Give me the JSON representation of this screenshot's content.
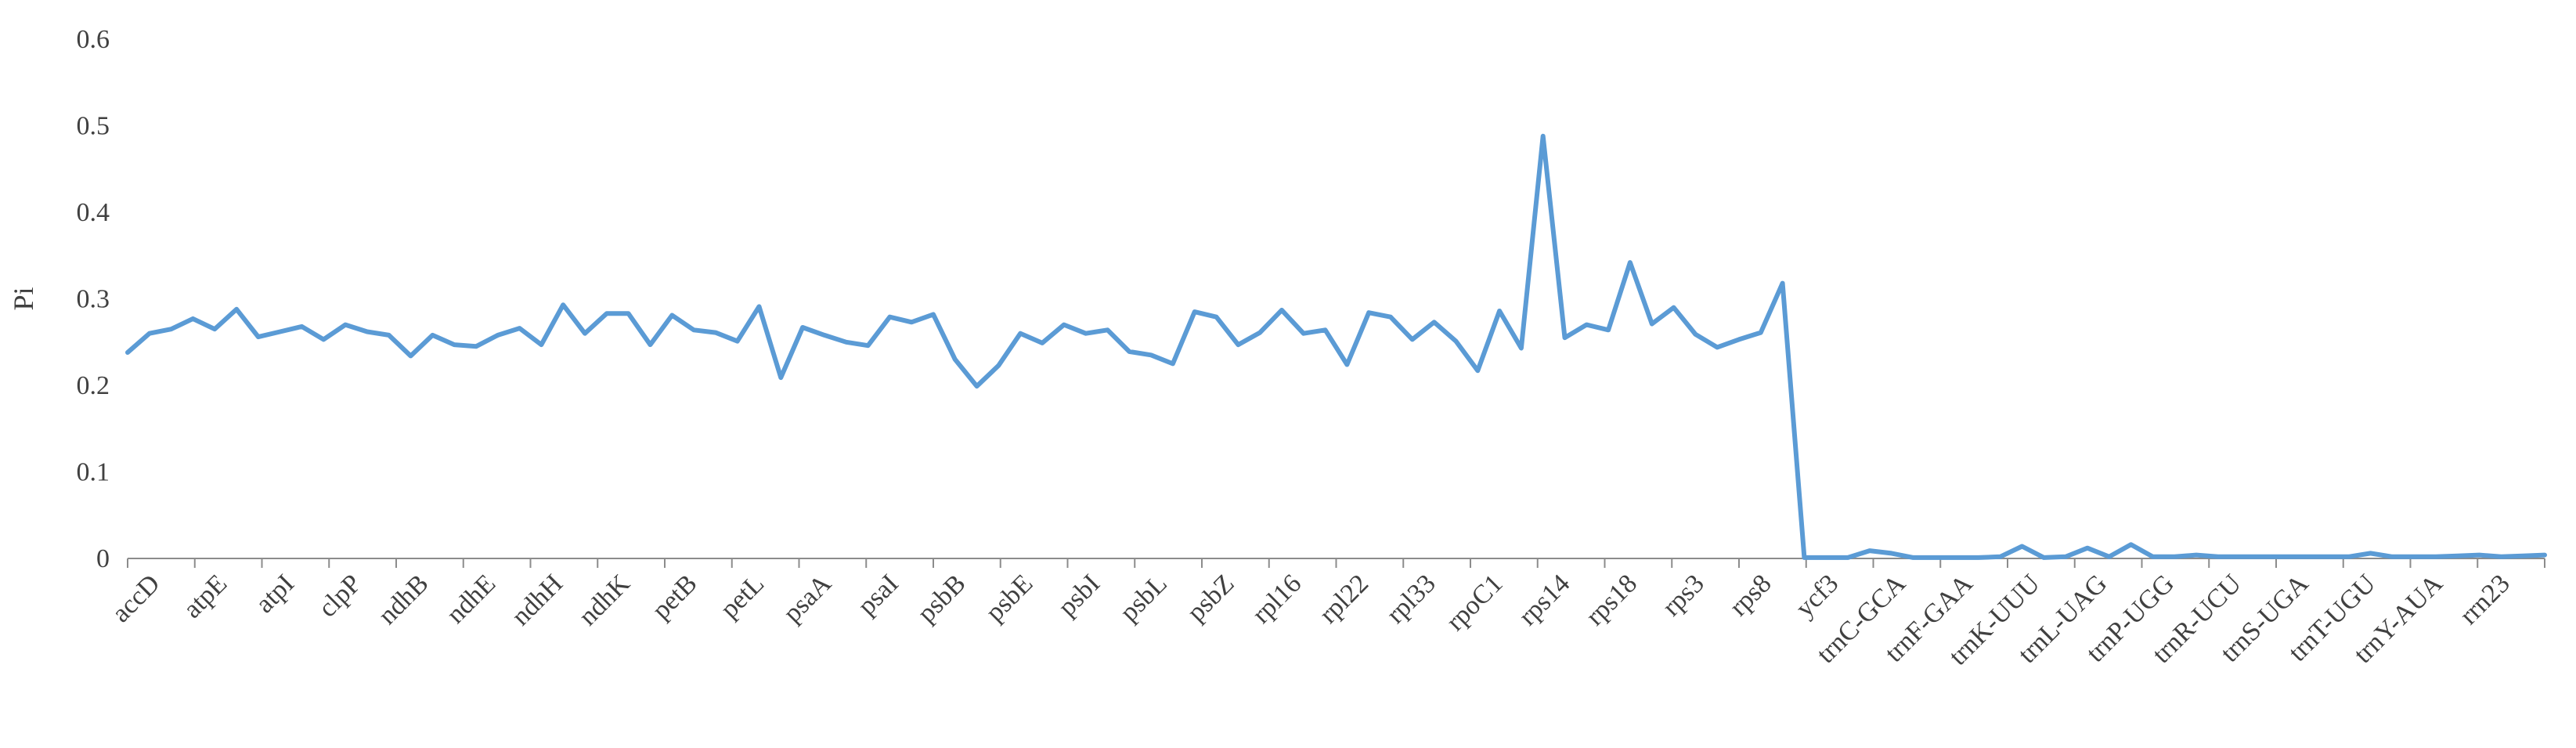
{
  "chart_data": {
    "type": "line",
    "title": "",
    "xlabel": "",
    "ylabel": "Pi",
    "ylim": [
      0,
      0.6
    ],
    "yticks": [
      "0",
      "0.1",
      "0.2",
      "0.3",
      "0.4",
      "0.5",
      "0.6"
    ],
    "grid": false,
    "line_color": "#5b9bd5",
    "x_labels": [
      "accD",
      "atpE",
      "atpI",
      "clpP",
      "ndhB",
      "ndhE",
      "ndhH",
      "ndhK",
      "petB",
      "petL",
      "psaA",
      "psaI",
      "psbB",
      "psbE",
      "psbI",
      "psbL",
      "psbZ",
      "rpl16",
      "rpl22",
      "rpl33",
      "rpoC1",
      "rps14",
      "rps18",
      "rps3",
      "rps8",
      "ycf3",
      "trnC-GCA",
      "trnF-GAA",
      "trnK-UUU",
      "trnL-UAG",
      "trnP-UGG",
      "trnR-UCU",
      "trnS-UGA",
      "trnT-UGU",
      "trnY-AUA",
      "rrn23"
    ],
    "values": [
      0.238,
      0.26,
      0.265,
      0.277,
      0.265,
      0.288,
      0.256,
      0.262,
      0.268,
      0.253,
      0.27,
      0.262,
      0.258,
      0.234,
      0.258,
      0.247,
      0.245,
      0.258,
      0.266,
      0.247,
      0.293,
      0.26,
      0.283,
      0.283,
      0.247,
      0.281,
      0.264,
      0.261,
      0.251,
      0.291,
      0.209,
      0.267,
      0.258,
      0.25,
      0.246,
      0.279,
      0.273,
      0.282,
      0.23,
      0.199,
      0.223,
      0.26,
      0.249,
      0.27,
      0.26,
      0.264,
      0.239,
      0.235,
      0.225,
      0.285,
      0.279,
      0.247,
      0.261,
      0.287,
      0.26,
      0.264,
      0.224,
      0.284,
      0.279,
      0.253,
      0.273,
      0.251,
      0.217,
      0.286,
      0.243,
      0.488,
      0.255,
      0.27,
      0.264,
      0.342,
      0.271,
      0.29,
      0.259,
      0.244,
      0.253,
      0.261,
      0.318,
      0.001,
      0.001,
      0.001,
      0.009,
      0.006,
      0.001,
      0.001,
      0.001,
      0.001,
      0.002,
      0.014,
      0.001,
      0.002,
      0.012,
      0.002,
      0.016,
      0.002,
      0.002,
      0.004,
      0.002,
      0.002,
      0.002,
      0.002,
      0.002,
      0.002,
      0.002,
      0.006,
      0.002,
      0.002,
      0.002,
      0.003,
      0.004,
      0.002,
      0.003,
      0.004
    ]
  }
}
